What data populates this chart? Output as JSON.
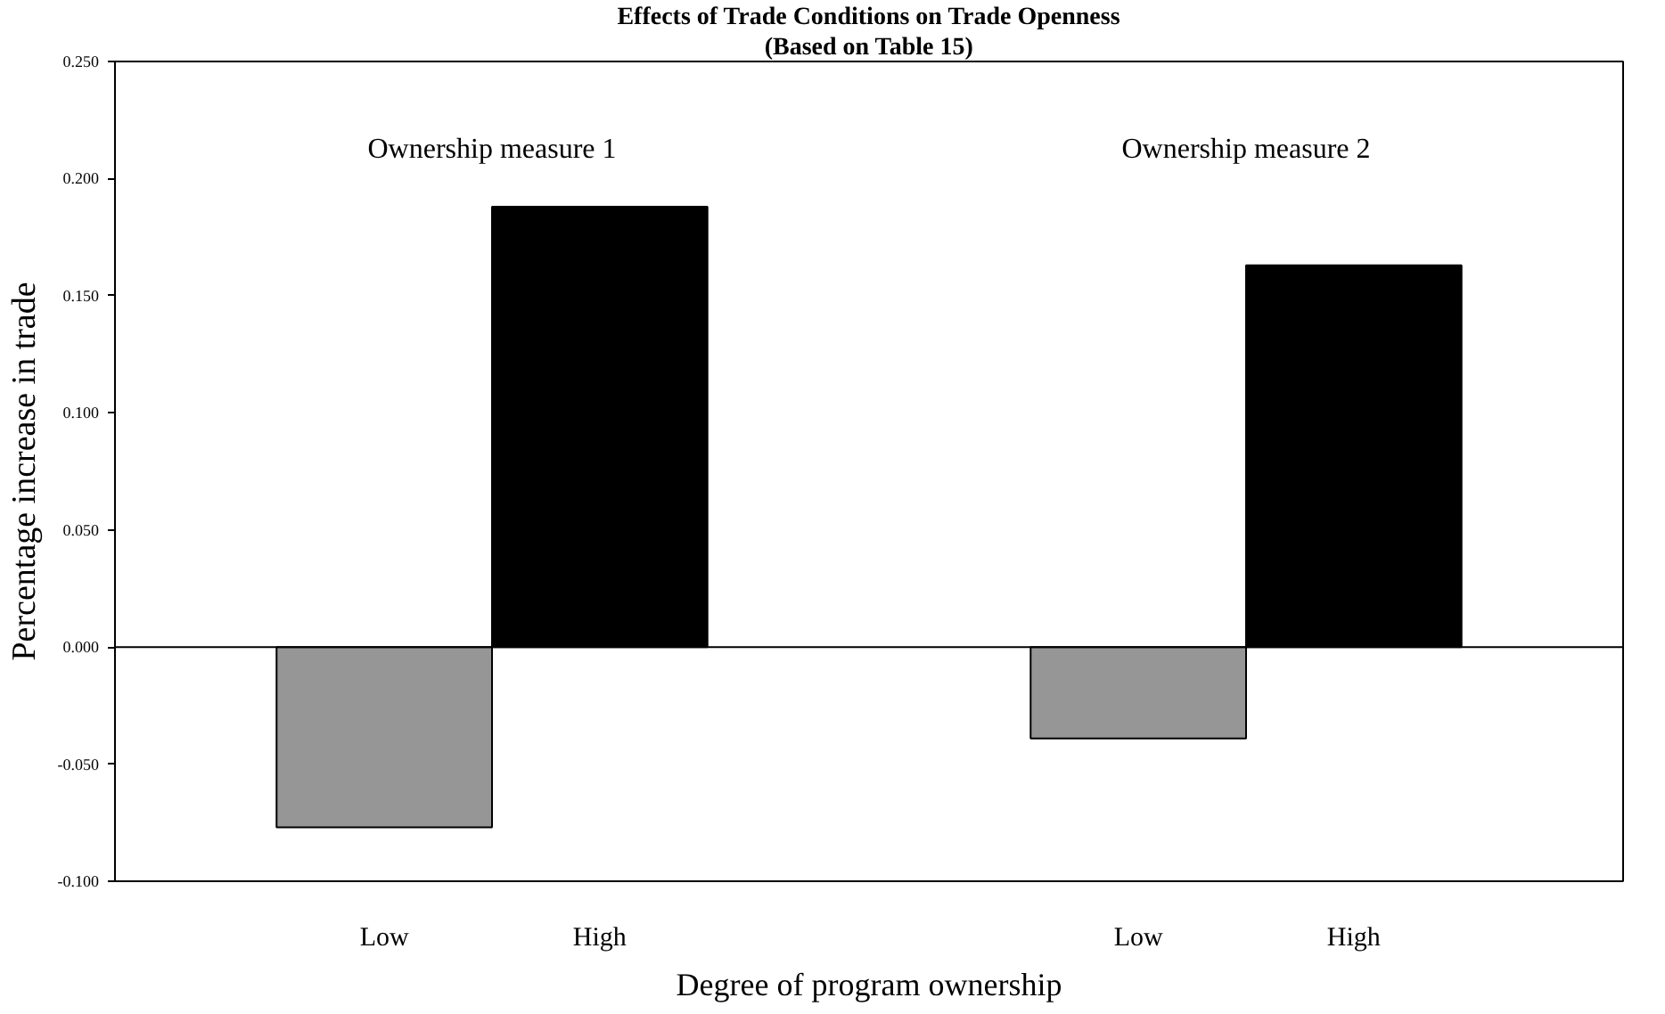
{
  "chart_data": {
    "type": "bar",
    "title": "Effects of Trade Conditions on Trade Openness",
    "subtitle": "(Based on Table 15)",
    "xlabel": "Degree of program ownership",
    "ylabel": "Percentage increase in trade",
    "categories": [
      "Low",
      "High",
      "Low",
      "High"
    ],
    "values": [
      -0.077,
      0.188,
      -0.039,
      0.163
    ],
    "colors": [
      "#969696",
      "#000000",
      "#969696",
      "#000000"
    ],
    "ylim": [
      -0.1,
      0.25
    ],
    "yticks": [
      {
        "value": -0.1,
        "label": "-0.100"
      },
      {
        "value": -0.05,
        "label": "-0.050"
      },
      {
        "value": 0,
        "label": "0.000"
      },
      {
        "value": 0.05,
        "label": "0.050"
      },
      {
        "value": 0.1,
        "label": "0.100"
      },
      {
        "value": 0.15,
        "label": "0.150"
      },
      {
        "value": 0.2,
        "label": "0.200"
      },
      {
        "value": 0.25,
        "label": "0.250"
      }
    ],
    "ref_lines": [
      {
        "axis": "y",
        "value": 0
      }
    ],
    "annotations": [
      "Ownership measure 1",
      "Ownership measure 2"
    ],
    "grid": false
  }
}
